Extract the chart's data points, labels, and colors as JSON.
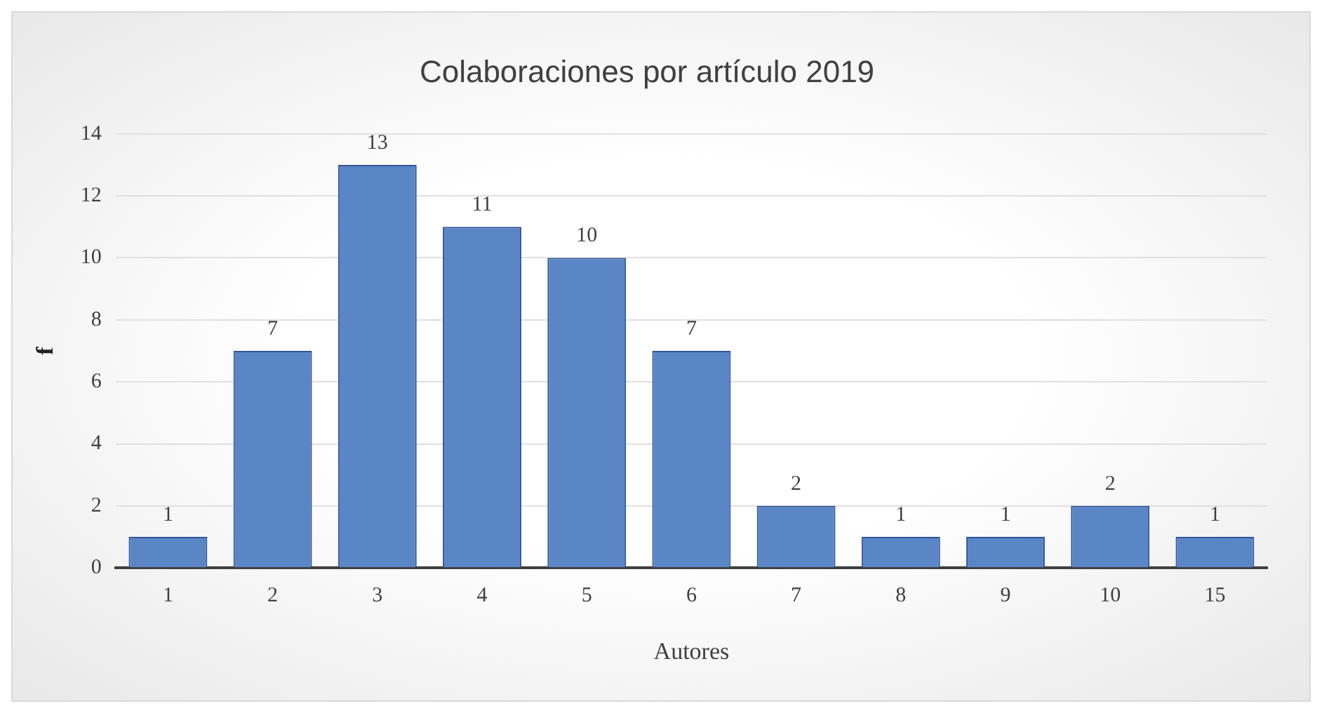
{
  "chart_data": {
    "type": "bar",
    "title": "Colaboraciones por artículo 2019",
    "xlabel": "Autores",
    "ylabel": "f",
    "categories": [
      "1",
      "2",
      "3",
      "4",
      "5",
      "6",
      "7",
      "8",
      "9",
      "10",
      "15"
    ],
    "values": [
      1,
      7,
      13,
      11,
      10,
      7,
      2,
      1,
      1,
      2,
      1
    ],
    "color": "#5b86c6",
    "ylim": [
      0,
      14
    ],
    "yticks": [
      0,
      2,
      4,
      6,
      8,
      10,
      12,
      14
    ],
    "grid": "y",
    "data_labels": true
  }
}
